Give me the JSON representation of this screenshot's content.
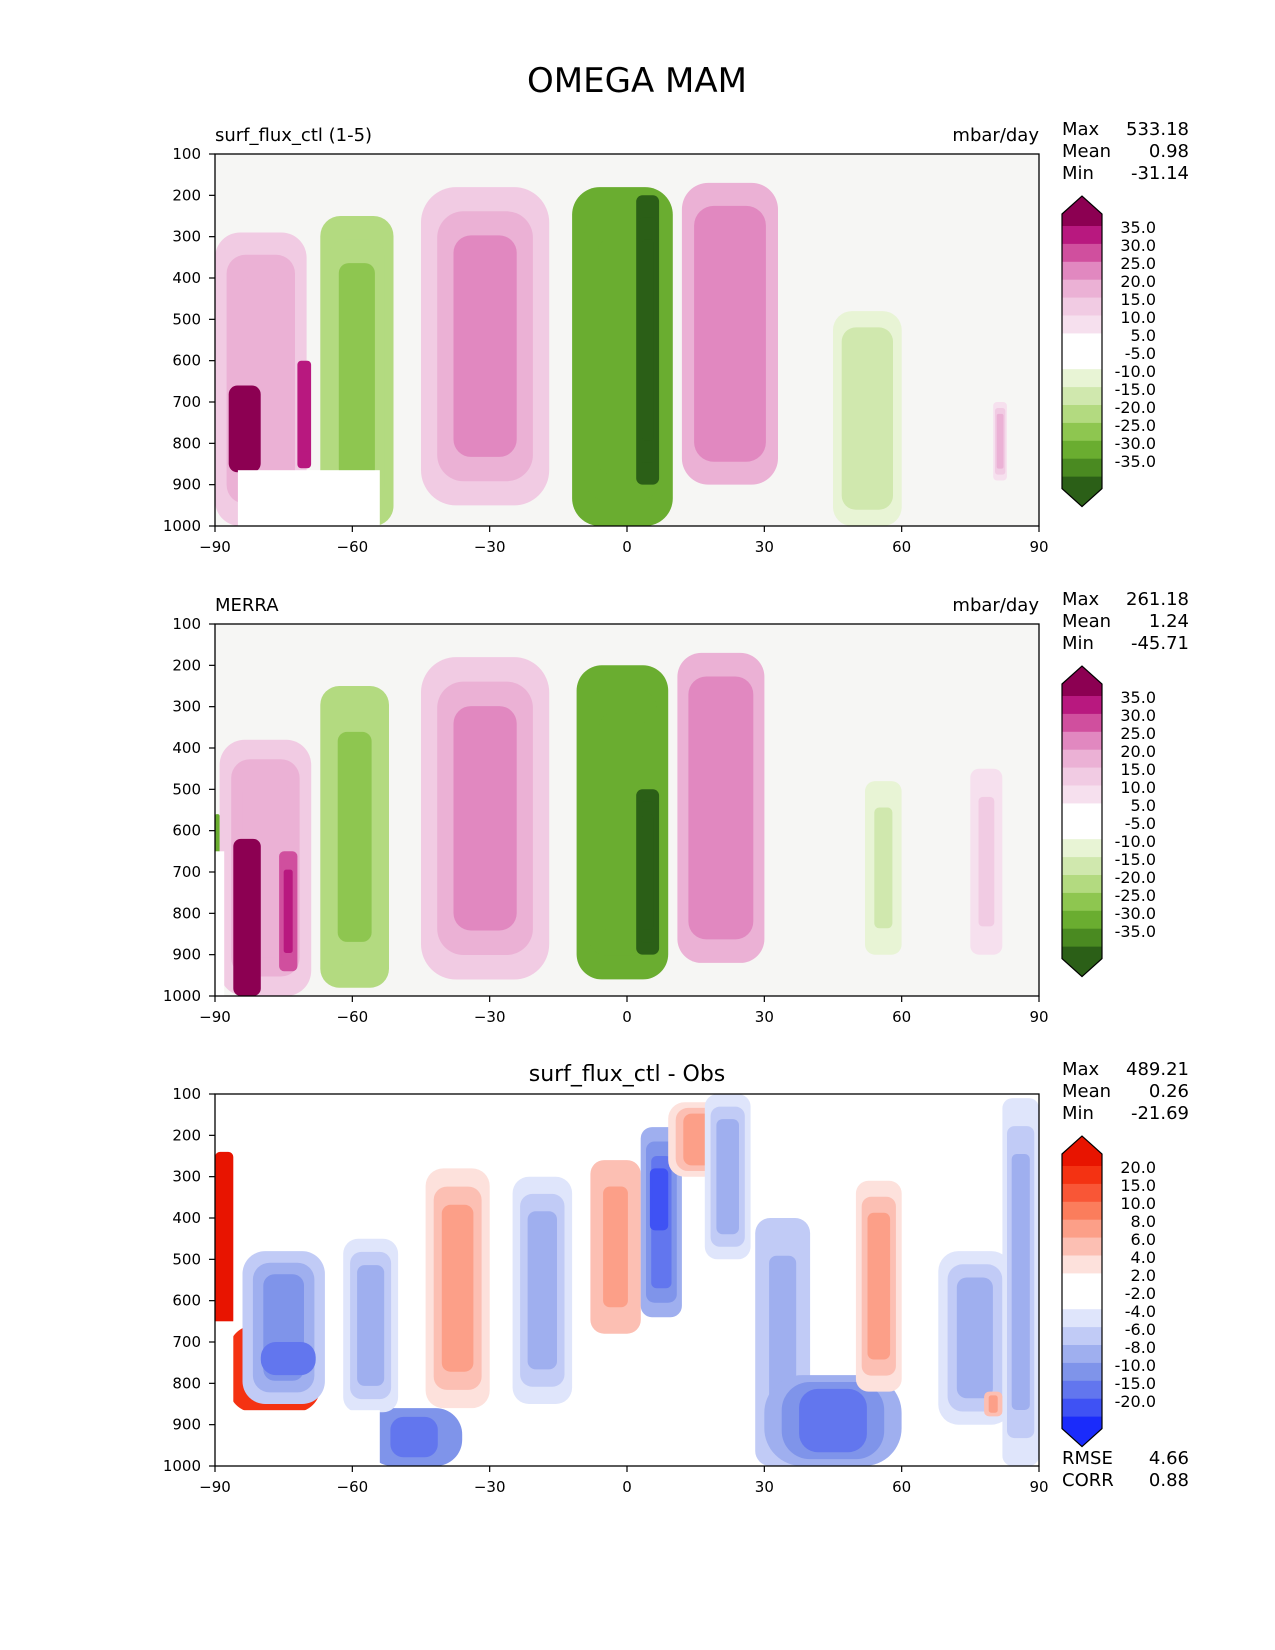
{
  "figure": {
    "title": "OMEGA MAM"
  },
  "colors": {
    "background": "#f6f6f4",
    "pink": [
      "#ffffff",
      "#f6e0ee",
      "#f1cbe3",
      "#ebb1d5",
      "#e188c0",
      "#d04f9e",
      "#b8187f",
      "#8c0052"
    ],
    "green": [
      "#ffffff",
      "#e8f4d5",
      "#d0e8ae",
      "#b3da80",
      "#8ec650",
      "#6aad30",
      "#4a8a21",
      "#2b5f17"
    ],
    "red": [
      "#ffffff",
      "#fde1dc",
      "#fcbfb3",
      "#fc9f88",
      "#fb7d5c",
      "#f95636",
      "#f43212",
      "#e81400"
    ],
    "blue": [
      "#ffffff",
      "#dfe5fb",
      "#c1cbf6",
      "#9fafef",
      "#7f94ea",
      "#6276ee",
      "#3f52f4",
      "#1a2bfb"
    ]
  },
  "chart_data": [
    {
      "type": "heatmap",
      "title_left": "surf_flux_ctl (1-5)",
      "title_right": "mbar/day",
      "title_center": "",
      "xlabel": "",
      "ylabel": "",
      "xlim": [
        -90,
        90
      ],
      "ylim": [
        1000,
        100
      ],
      "xticks": [
        "−90",
        "−60",
        "−30",
        "0",
        "30",
        "60",
        "90"
      ],
      "yticks": [
        "100",
        "200",
        "300",
        "400",
        "500",
        "600",
        "700",
        "800",
        "900",
        "1000"
      ],
      "stats": [
        {
          "label": "Max",
          "value": "533.18"
        },
        {
          "label": "Mean",
          "value": "0.98"
        },
        {
          "label": "Min",
          "value": "-31.14"
        }
      ],
      "colorbar": {
        "palette": "pinkgreen",
        "labels": [
          "35.0",
          "30.0",
          "25.0",
          "20.0",
          "15.0",
          "10.0",
          "5.0",
          "-5.0",
          "-10.0",
          "-15.0",
          "-20.0",
          "-25.0",
          "-30.0",
          "-35.0"
        ]
      },
      "extra_stats": [],
      "masks": [
        {
          "lon": [
            -85,
            -54
          ],
          "p": [
            865,
            1000
          ]
        }
      ],
      "features": [
        {
          "lon": [
            -90,
            -70
          ],
          "p": [
            290,
            1000
          ],
          "value": 12,
          "peak": 40
        },
        {
          "lon": [
            -87,
            -80
          ],
          "p": [
            660,
            870
          ],
          "value": 45,
          "peak": 40
        },
        {
          "lon": [
            -72,
            -69
          ],
          "p": [
            600,
            860
          ],
          "value": 30,
          "peak": 40
        },
        {
          "lon": [
            -67,
            -51
          ],
          "p": [
            250,
            1000
          ],
          "value": -15,
          "peak": -40
        },
        {
          "lon": [
            -45,
            -17
          ],
          "p": [
            180,
            950
          ],
          "value": 14,
          "peak": 40
        },
        {
          "lon": [
            -12,
            10
          ],
          "p": [
            180,
            1000
          ],
          "value": -25,
          "peak": -40
        },
        {
          "lon": [
            2,
            7
          ],
          "p": [
            200,
            900
          ],
          "value": -38,
          "peak": -40
        },
        {
          "lon": [
            12,
            33
          ],
          "p": [
            170,
            900
          ],
          "value": 18,
          "peak": 40
        },
        {
          "lon": [
            45,
            60
          ],
          "p": [
            480,
            1000
          ],
          "value": -7,
          "peak": -40
        },
        {
          "lon": [
            80,
            83
          ],
          "p": [
            700,
            890
          ],
          "value": 8,
          "peak": 40
        }
      ]
    },
    {
      "type": "heatmap",
      "title_left": "MERRA",
      "title_right": "mbar/day",
      "title_center": "",
      "xlabel": "",
      "ylabel": "",
      "xlim": [
        -90,
        90
      ],
      "ylim": [
        1000,
        100
      ],
      "xticks": [
        "−90",
        "−60",
        "−30",
        "0",
        "30",
        "60",
        "90"
      ],
      "yticks": [
        "100",
        "200",
        "300",
        "400",
        "500",
        "600",
        "700",
        "800",
        "900",
        "1000"
      ],
      "stats": [
        {
          "label": "Max",
          "value": "261.18"
        },
        {
          "label": "Mean",
          "value": "1.24"
        },
        {
          "label": "Min",
          "value": "-45.71"
        }
      ],
      "colorbar": {
        "palette": "pinkgreen",
        "labels": [
          "35.0",
          "30.0",
          "25.0",
          "20.0",
          "15.0",
          "10.0",
          "5.0",
          "-5.0",
          "-10.0",
          "-15.0",
          "-20.0",
          "-25.0",
          "-30.0",
          "-35.0"
        ]
      },
      "extra_stats": [],
      "masks": [
        {
          "lon": [
            -90,
            -88
          ],
          "p": [
            650,
            1000
          ]
        }
      ],
      "features": [
        {
          "lon": [
            -89,
            -69
          ],
          "p": [
            380,
            1000
          ],
          "value": 12,
          "peak": 40
        },
        {
          "lon": [
            -86,
            -80
          ],
          "p": [
            620,
            1000
          ],
          "value": 45,
          "peak": 40
        },
        {
          "lon": [
            -76,
            -72
          ],
          "p": [
            650,
            940
          ],
          "value": 28,
          "peak": 40
        },
        {
          "lon": [
            -90,
            -89
          ],
          "p": [
            560,
            660
          ],
          "value": -25,
          "peak": -40
        },
        {
          "lon": [
            -67,
            -52
          ],
          "p": [
            250,
            980
          ],
          "value": -15,
          "peak": -40
        },
        {
          "lon": [
            -45,
            -17
          ],
          "p": [
            180,
            960
          ],
          "value": 14,
          "peak": 40
        },
        {
          "lon": [
            -11,
            9
          ],
          "p": [
            200,
            960
          ],
          "value": -25,
          "peak": -40
        },
        {
          "lon": [
            2,
            7
          ],
          "p": [
            500,
            900
          ],
          "value": -38,
          "peak": -40
        },
        {
          "lon": [
            11,
            30
          ],
          "p": [
            170,
            920
          ],
          "value": 18,
          "peak": 40
        },
        {
          "lon": [
            52,
            60
          ],
          "p": [
            480,
            900
          ],
          "value": -6,
          "peak": -40
        },
        {
          "lon": [
            75,
            82
          ],
          "p": [
            450,
            900
          ],
          "value": 6,
          "peak": 40
        }
      ]
    },
    {
      "type": "heatmap",
      "title_left": "",
      "title_right": "",
      "title_center": "surf_flux_ctl - Obs",
      "xlabel": "",
      "ylabel": "",
      "xlim": [
        -90,
        90
      ],
      "ylim": [
        1000,
        100
      ],
      "xticks": [
        "−90",
        "−60",
        "−30",
        "0",
        "30",
        "60",
        "90"
      ],
      "yticks": [
        "100",
        "200",
        "300",
        "400",
        "500",
        "600",
        "700",
        "800",
        "900",
        "1000"
      ],
      "stats": [
        {
          "label": "Max",
          "value": "489.21"
        },
        {
          "label": "Mean",
          "value": "0.26"
        },
        {
          "label": "Min",
          "value": "-21.69"
        }
      ],
      "colorbar": {
        "palette": "redblue",
        "labels": [
          "20.0",
          "15.0",
          "10.0",
          "8.0",
          "6.0",
          "4.0",
          "2.0",
          "-2.0",
          "-4.0",
          "-6.0",
          "-8.0",
          "-10.0",
          "-15.0",
          "-20.0"
        ]
      },
      "extra_stats": [
        {
          "label": "RMSE",
          "value": "4.66"
        },
        {
          "label": "CORR",
          "value": "0.88"
        }
      ],
      "masks": [
        {
          "lon": [
            -85,
            -54
          ],
          "p": [
            865,
            1000
          ]
        },
        {
          "lon": [
            -90,
            -86
          ],
          "p": [
            650,
            1000
          ]
        }
      ],
      "features": [
        {
          "lon": [
            -90,
            -86
          ],
          "p": [
            240,
            660
          ],
          "value": 20,
          "peak": 20
        },
        {
          "lon": [
            -87,
            -67
          ],
          "p": [
            660,
            870
          ],
          "value": 18,
          "peak": 20
        },
        {
          "lon": [
            -84,
            -66
          ],
          "p": [
            480,
            850
          ],
          "value": -5,
          "peak": -20
        },
        {
          "lon": [
            -80,
            -68
          ],
          "p": [
            700,
            780
          ],
          "value": -10,
          "peak": -20
        },
        {
          "lon": [
            -57,
            -36
          ],
          "p": [
            860,
            1000
          ],
          "value": -8,
          "peak": -20
        },
        {
          "lon": [
            -62,
            -50
          ],
          "p": [
            450,
            870
          ],
          "value": -3,
          "peak": -20
        },
        {
          "lon": [
            -44,
            -30
          ],
          "p": [
            280,
            860
          ],
          "value": 3,
          "peak": 20
        },
        {
          "lon": [
            -25,
            -12
          ],
          "p": [
            300,
            850
          ],
          "value": -3,
          "peak": -20
        },
        {
          "lon": [
            -8,
            3
          ],
          "p": [
            260,
            680
          ],
          "value": 4,
          "peak": 20
        },
        {
          "lon": [
            3,
            12
          ],
          "p": [
            180,
            640
          ],
          "value": -7,
          "peak": -20
        },
        {
          "lon": [
            5,
            9
          ],
          "p": [
            280,
            430
          ],
          "value": -16,
          "peak": -20
        },
        {
          "lon": [
            9,
            22
          ],
          "p": [
            120,
            300
          ],
          "value": 3,
          "peak": 20
        },
        {
          "lon": [
            17,
            27
          ],
          "p": [
            100,
            500
          ],
          "value": -3,
          "peak": -20
        },
        {
          "lon": [
            28,
            40
          ],
          "p": [
            400,
            1000
          ],
          "value": -4,
          "peak": -20
        },
        {
          "lon": [
            30,
            60
          ],
          "p": [
            780,
            1000
          ],
          "value": -7,
          "peak": -20
        },
        {
          "lon": [
            50,
            60
          ],
          "p": [
            310,
            820
          ],
          "value": 3,
          "peak": 20
        },
        {
          "lon": [
            68,
            84
          ],
          "p": [
            480,
            900
          ],
          "value": -3,
          "peak": -20
        },
        {
          "lon": [
            82,
            90
          ],
          "p": [
            110,
            1000
          ],
          "value": -3,
          "peak": -20
        },
        {
          "lon": [
            78,
            82
          ],
          "p": [
            820,
            880
          ],
          "value": 4,
          "peak": 20
        }
      ]
    }
  ]
}
